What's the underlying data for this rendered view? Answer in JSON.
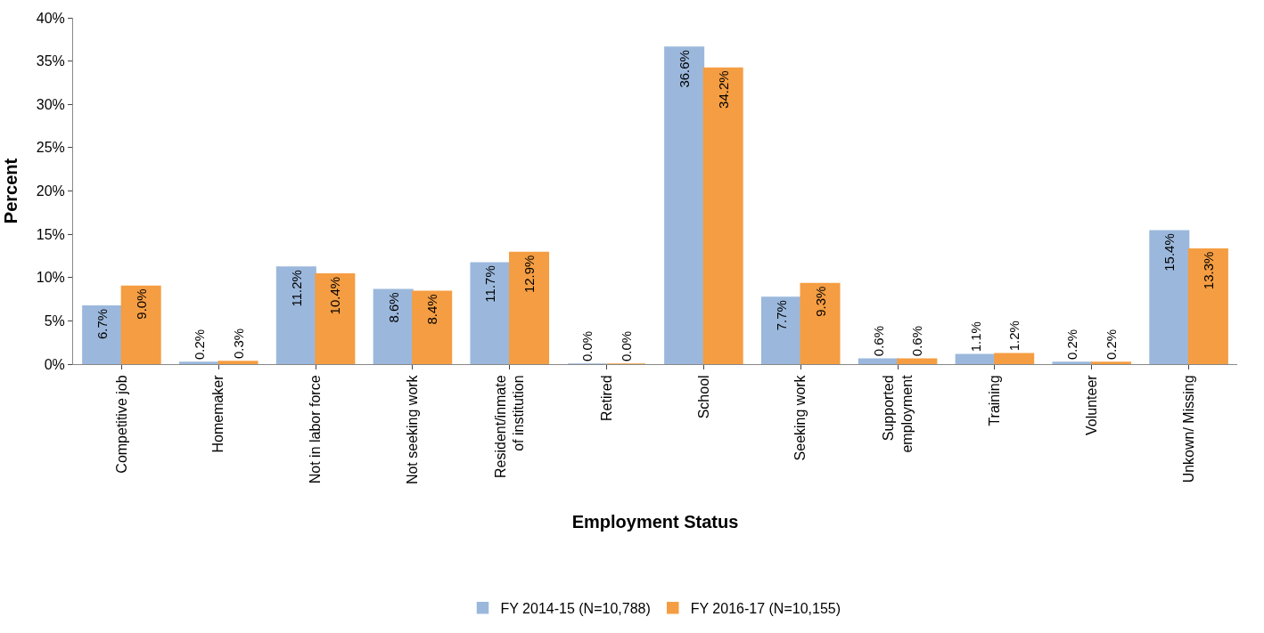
{
  "chart_data": {
    "type": "bar",
    "xlabel": "Employment Status",
    "ylabel": "Percent",
    "categories": [
      "Competitive job",
      "Homemaker",
      "Not in labor force",
      "Not seeking work",
      "Resident/inmate of institution",
      "Retired",
      "School",
      "Seeking work",
      "Supported employment",
      "Training",
      "Volunteer",
      "Unkown/ Missing"
    ],
    "series": [
      {
        "name": "FY 2014-15 (N=10,788)",
        "color": "#9bb8dc",
        "values": [
          6.7,
          0.2,
          11.2,
          8.6,
          11.7,
          0.0,
          36.6,
          7.7,
          0.6,
          1.1,
          0.2,
          15.4
        ],
        "value_labels": [
          "6.7%",
          "0.2%",
          "11.2%",
          "8.6%",
          "11.7%",
          "0.0%",
          "36.6%",
          "7.7%",
          "0.6%",
          "1.1%",
          "0.2%",
          "15.4%"
        ]
      },
      {
        "name": "FY 2016-17 (N=10,155)",
        "color": "#f59d42",
        "values": [
          9.0,
          0.3,
          10.4,
          8.4,
          12.9,
          0.0,
          34.2,
          9.3,
          0.6,
          1.2,
          0.2,
          13.3
        ],
        "value_labels": [
          "9.0%",
          "0.3%",
          "10.4%",
          "8.4%",
          "12.9%",
          "0.0%",
          "34.2%",
          "9.3%",
          "0.6%",
          "1.2%",
          "0.2%",
          "13.3%"
        ]
      }
    ],
    "ylim": [
      0,
      40
    ],
    "yticks": [
      {
        "value": 0,
        "label": "0%"
      },
      {
        "value": 5,
        "label": "5%"
      },
      {
        "value": 10,
        "label": "10%"
      },
      {
        "value": 15,
        "label": "15%"
      },
      {
        "value": 20,
        "label": "20%"
      },
      {
        "value": 25,
        "label": "25%"
      },
      {
        "value": 30,
        "label": "30%"
      },
      {
        "value": 35,
        "label": "35%"
      },
      {
        "value": 40,
        "label": "40%"
      }
    ],
    "legend": "bottom"
  }
}
